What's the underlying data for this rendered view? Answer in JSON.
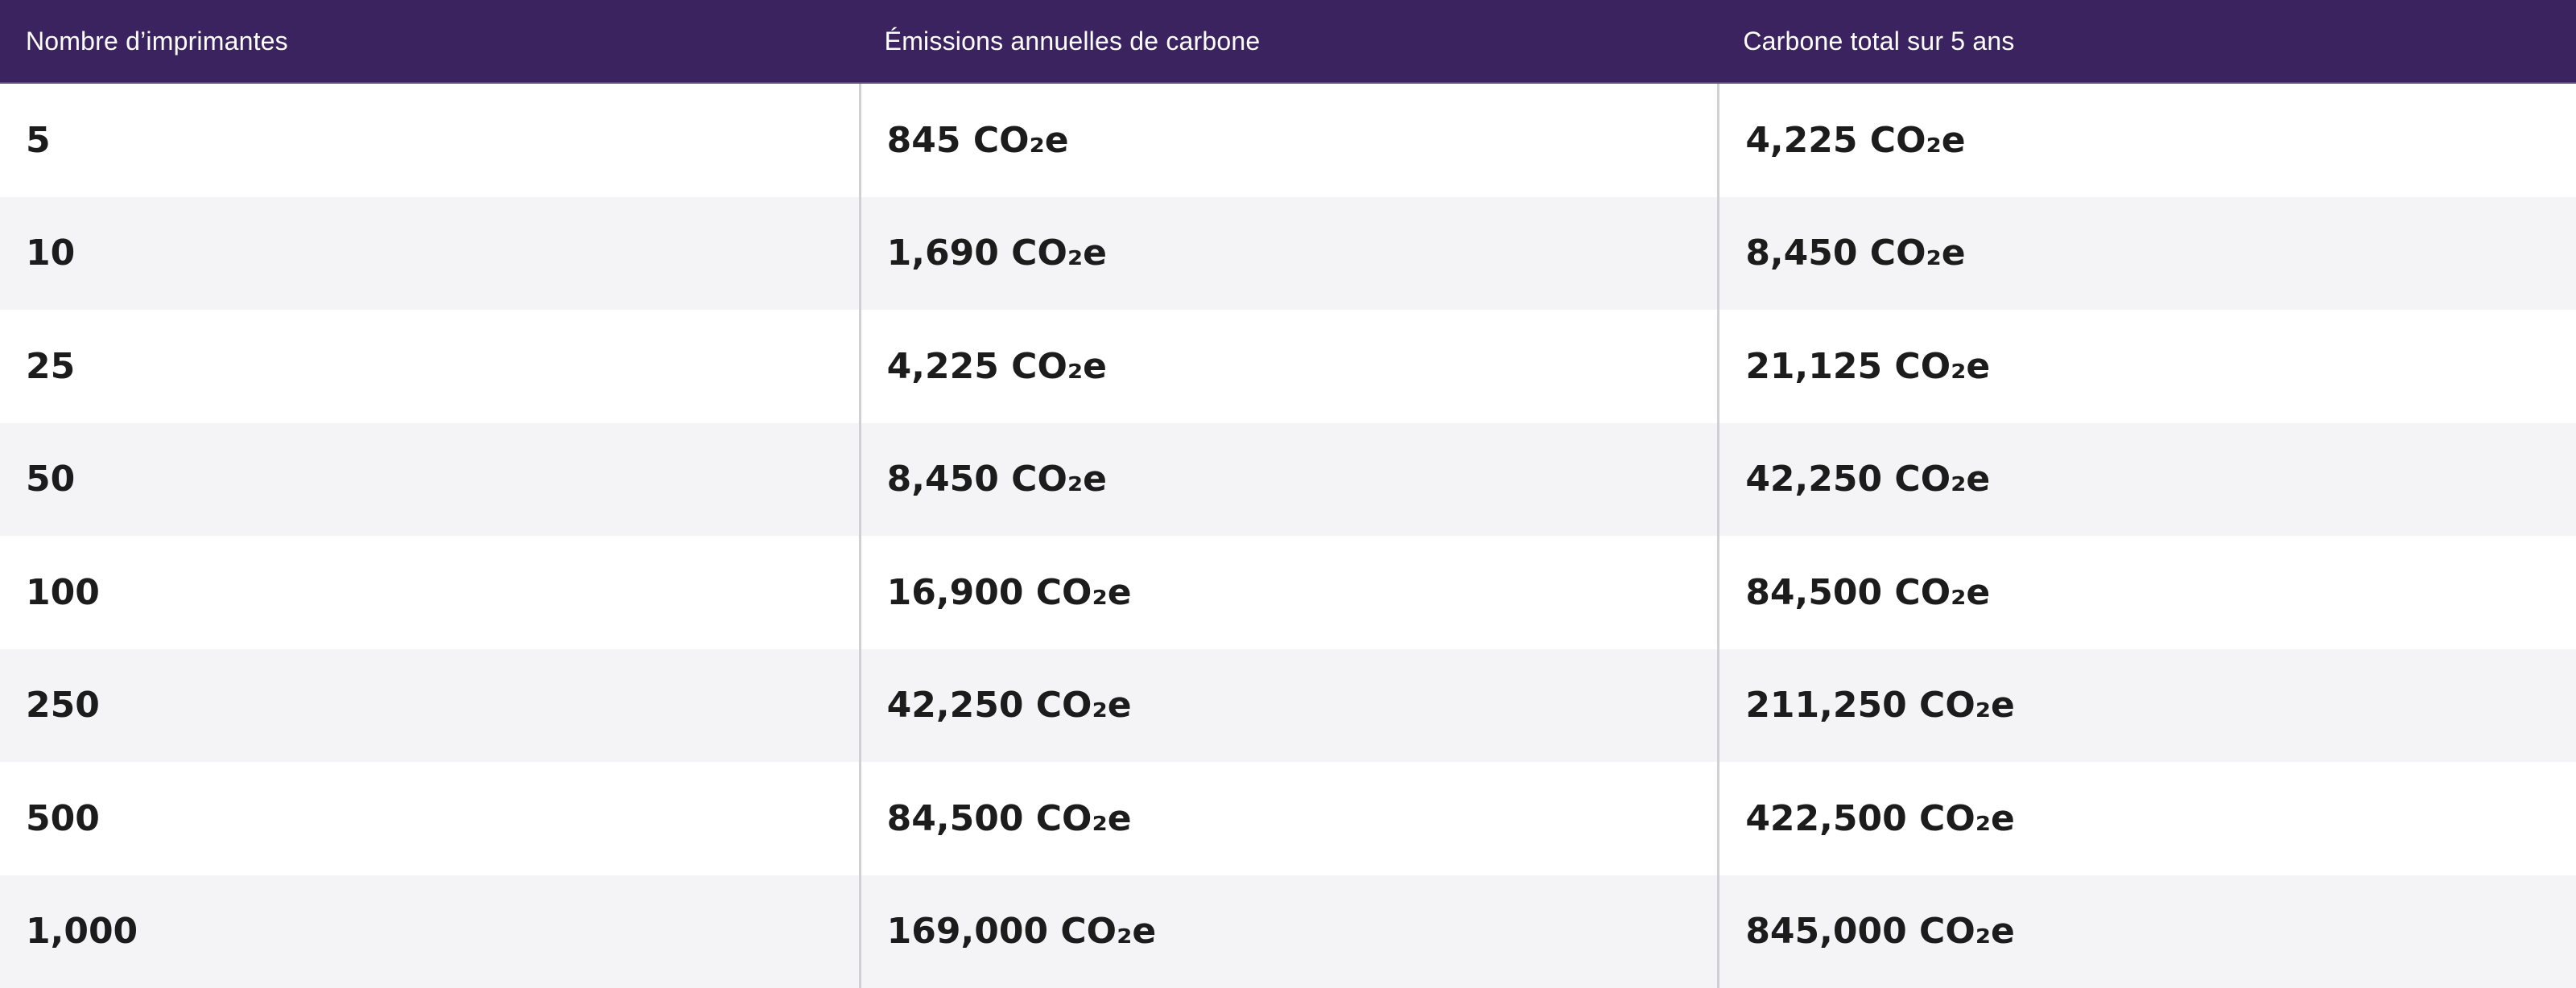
{
  "table": {
    "headers": [
      "Nombre d’imprimantes",
      "Émissions annuelles de carbone",
      "Carbone total sur 5 ans"
    ],
    "rows": [
      [
        "5",
        "845 CO₂e",
        "4,225 CO₂e"
      ],
      [
        "10",
        "1,690 CO₂e",
        "8,450 CO₂e"
      ],
      [
        "25",
        "4,225 CO₂e",
        "21,125 CO₂e"
      ],
      [
        "50",
        "8,450 CO₂e",
        "42,250 CO₂e"
      ],
      [
        "100",
        "16,900 CO₂e",
        "84,500 CO₂e"
      ],
      [
        "250",
        "42,250 CO₂e",
        "211,250 CO₂e"
      ],
      [
        "500",
        "84,500 CO₂e",
        "422,500 CO₂e"
      ],
      [
        "1,000",
        "169,000 CO₂e",
        "845,000 CO₂e"
      ]
    ]
  },
  "colors": {
    "header_bg": "#3b2360",
    "row_alt_bg": "#f4f4f6",
    "text": "#1c1c1c",
    "divider": "#cfcfd4"
  }
}
